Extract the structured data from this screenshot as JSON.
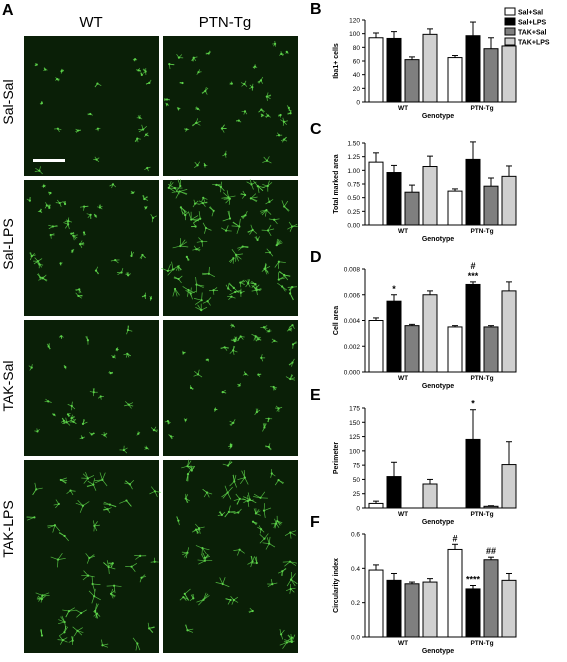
{
  "figure": {
    "panels": {
      "A": "A",
      "B": "B",
      "C": "C",
      "D": "D",
      "E": "E",
      "F": "F"
    },
    "columns": [
      "WT",
      "PTN-Tg"
    ],
    "rows": [
      "Sal-Sal",
      "Sal-LPS",
      "TAK-Sal",
      "TAK-LPS"
    ],
    "micro_color": "#0a1f07",
    "cell_color": "#5dd34a"
  },
  "legend": [
    "Sal+Sal",
    "Sal+LPS",
    "TAK+Sal",
    "TAK+LPS"
  ],
  "chart_data": [
    {
      "type": "bar",
      "panel": "B",
      "ylabel": "Iba1+ cells",
      "xlabel": "Genotype",
      "categories": [
        "WT",
        "PTN-Tg"
      ],
      "ylim": [
        0,
        120
      ],
      "yticks": [
        "0",
        "20",
        "40",
        "60",
        "80",
        "100",
        "120"
      ],
      "series": [
        {
          "name": "Sal+Sal",
          "values": [
            94,
            65
          ],
          "errors": [
            7,
            3
          ],
          "color": "#ffffff"
        },
        {
          "name": "Sal+LPS",
          "values": [
            93,
            97
          ],
          "errors": [
            10,
            20
          ],
          "color": "#000000"
        },
        {
          "name": "TAK+Sal",
          "values": [
            62,
            78
          ],
          "errors": [
            4,
            16
          ],
          "color": "#7f7f7f"
        },
        {
          "name": "TAK+LPS",
          "values": [
            99,
            82
          ],
          "errors": [
            8,
            8
          ],
          "color": "#d0d0d0"
        }
      ],
      "annotations": []
    },
    {
      "type": "bar",
      "panel": "C",
      "ylabel": "Total marked area",
      "xlabel": "Genotype",
      "categories": [
        "WT",
        "PTN-Tg"
      ],
      "ylim": [
        0,
        1.5
      ],
      "yticks": [
        "0.00",
        "0.25",
        "0.50",
        "0.75",
        "1.00",
        "1.25",
        "1.50"
      ],
      "series": [
        {
          "name": "Sal+Sal",
          "values": [
            1.15,
            0.62
          ],
          "errors": [
            0.17,
            0.04
          ],
          "color": "#ffffff"
        },
        {
          "name": "Sal+LPS",
          "values": [
            0.96,
            1.2
          ],
          "errors": [
            0.13,
            0.32
          ],
          "color": "#000000"
        },
        {
          "name": "TAK+Sal",
          "values": [
            0.6,
            0.71
          ],
          "errors": [
            0.13,
            0.15
          ],
          "color": "#7f7f7f"
        },
        {
          "name": "TAK+LPS",
          "values": [
            1.07,
            0.89
          ],
          "errors": [
            0.19,
            0.19
          ],
          "color": "#d0d0d0"
        }
      ],
      "annotations": []
    },
    {
      "type": "bar",
      "panel": "D",
      "ylabel": "Cell area",
      "xlabel": "Genotype",
      "categories": [
        "WT",
        "PTN-Tg"
      ],
      "ylim": [
        0,
        0.008
      ],
      "yticks": [
        "0.000",
        "0.002",
        "0.004",
        "0.006",
        "0.008"
      ],
      "series": [
        {
          "name": "Sal+Sal",
          "values": [
            0.004,
            0.0035
          ],
          "errors": [
            0.0002,
            0.0001
          ],
          "color": "#ffffff"
        },
        {
          "name": "Sal+LPS",
          "values": [
            0.0055,
            0.0068
          ],
          "errors": [
            0.0005,
            0.0002
          ],
          "color": "#000000"
        },
        {
          "name": "TAK+Sal",
          "values": [
            0.0036,
            0.0035
          ],
          "errors": [
            0.0001,
            0.0001
          ],
          "color": "#7f7f7f"
        },
        {
          "name": "TAK+LPS",
          "values": [
            0.006,
            0.0063
          ],
          "errors": [
            0.0003,
            0.0007
          ],
          "color": "#d0d0d0"
        }
      ],
      "annotations": [
        {
          "category": 0,
          "series": 1,
          "text": "*"
        },
        {
          "category": 1,
          "series": 1,
          "text": "***"
        },
        {
          "category": 1,
          "series": 1,
          "text": "#",
          "above": true
        }
      ]
    },
    {
      "type": "bar",
      "panel": "E",
      "ylabel": "Perimeter",
      "xlabel": "Genotype",
      "categories": [
        "WT",
        "PTN-Tg"
      ],
      "ylim": [
        0,
        175
      ],
      "yticks": [
        "0",
        "25",
        "50",
        "75",
        "100",
        "125",
        "150",
        "175"
      ],
      "series": [
        {
          "name": "Sal+Sal",
          "values": [
            8,
            0
          ],
          "errors": [
            4,
            0
          ],
          "color": "#ffffff"
        },
        {
          "name": "Sal+LPS",
          "values": [
            55,
            120
          ],
          "errors": [
            25,
            52
          ],
          "color": "#000000"
        },
        {
          "name": "TAK+Sal",
          "values": [
            0,
            3
          ],
          "errors": [
            0,
            1
          ],
          "color": "#7f7f7f"
        },
        {
          "name": "TAK+LPS",
          "values": [
            42,
            76
          ],
          "errors": [
            8,
            40
          ],
          "color": "#d0d0d0"
        }
      ],
      "annotations": [
        {
          "category": 1,
          "series": 1,
          "text": "*"
        }
      ]
    },
    {
      "type": "bar",
      "panel": "F",
      "ylabel": "Circularity index",
      "xlabel": "Genotype",
      "categories": [
        "WT",
        "PTN-Tg"
      ],
      "ylim": [
        0,
        0.6
      ],
      "yticks": [
        "0.0",
        "0.2",
        "0.4",
        "0.6"
      ],
      "series": [
        {
          "name": "Sal+Sal",
          "values": [
            0.39,
            0.51
          ],
          "errors": [
            0.03,
            0.03
          ],
          "color": "#ffffff"
        },
        {
          "name": "Sal+LPS",
          "values": [
            0.33,
            0.28
          ],
          "errors": [
            0.04,
            0.02
          ],
          "color": "#000000"
        },
        {
          "name": "TAK+Sal",
          "values": [
            0.31,
            0.45
          ],
          "errors": [
            0.01,
            0.015
          ],
          "color": "#7f7f7f"
        },
        {
          "name": "TAK+LPS",
          "values": [
            0.32,
            0.33
          ],
          "errors": [
            0.02,
            0.04
          ],
          "color": "#d0d0d0"
        }
      ],
      "annotations": [
        {
          "category": 1,
          "series": 0,
          "text": "#"
        },
        {
          "category": 1,
          "series": 1,
          "text": "****"
        },
        {
          "category": 1,
          "series": 2,
          "text": "##"
        }
      ]
    }
  ]
}
